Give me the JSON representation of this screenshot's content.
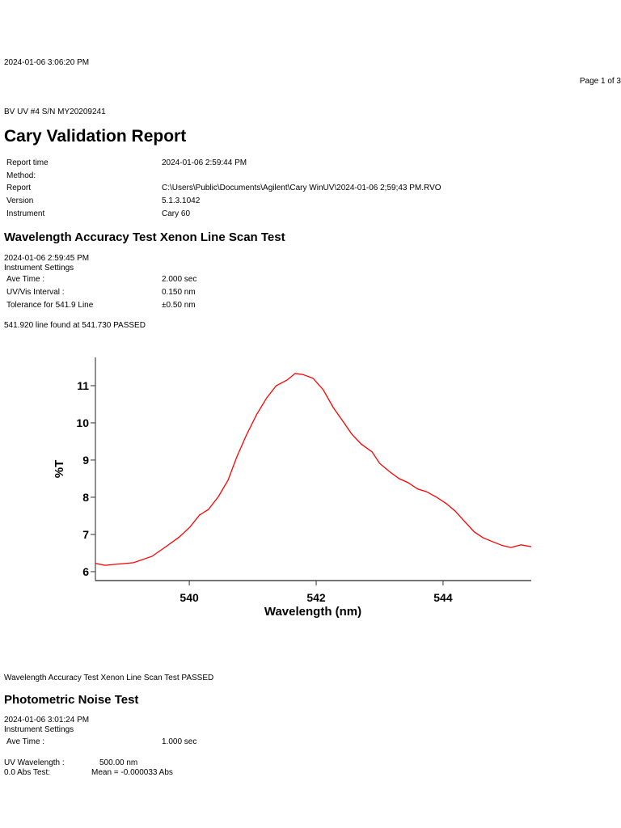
{
  "header": {
    "print_timestamp": "2024-01-06 3:06:20 PM",
    "page_indicator": "Page 1 of 3",
    "instrument_id": "BV UV #4 S/N MY20209241"
  },
  "report": {
    "title": "Cary Validation Report",
    "info": [
      {
        "label": "Report time",
        "value": "2024-01-06 2:59:44 PM"
      },
      {
        "label": "Method:",
        "value": ""
      },
      {
        "label": "Report",
        "value": "C:\\Users\\Public\\Documents\\Agilent\\Cary WinUV\\2024-01-06 2;59;43 PM.RVO"
      },
      {
        "label": "Version",
        "value": "5.1.3.1042"
      },
      {
        "label": "Instrument",
        "value": "Cary 60"
      }
    ]
  },
  "wavelength_test": {
    "title": "Wavelength Accuracy Test Xenon Line Scan Test",
    "timestamp": "2024-01-06 2:59:45 PM",
    "settings_label": "Instrument Settings",
    "settings": [
      {
        "label": "Ave Time :",
        "value": "2.000 sec"
      },
      {
        "label": "UV/Vis Interval :",
        "value": "0.150 nm"
      },
      {
        "label": "Tolerance for 541.9 Line",
        "value": "±0.50 nm"
      }
    ],
    "result_line": "541.920 line found at 541.730 PASSED",
    "summary": "Wavelength Accuracy Test Xenon Line Scan Test PASSED"
  },
  "chart_data": {
    "type": "line",
    "title": "",
    "xlabel": "Wavelength (nm)",
    "ylabel": "%T",
    "xlim": [
      538.52,
      545.39
    ],
    "ylim": [
      5.76,
      11.76
    ],
    "xticks": [
      540,
      542,
      544
    ],
    "yticks": [
      6,
      7,
      8,
      9,
      10,
      11
    ],
    "grid": false,
    "legend": null,
    "line_color": "#ff0000",
    "series": [
      {
        "name": "Xenon line scan",
        "x": [
          538.52,
          538.67,
          539.12,
          539.41,
          539.63,
          539.84,
          540.01,
          540.16,
          540.3,
          540.46,
          540.61,
          540.75,
          540.9,
          541.06,
          541.22,
          541.37,
          541.54,
          541.67,
          541.79,
          541.95,
          542.11,
          542.27,
          542.41,
          542.56,
          542.71,
          542.88,
          543.0,
          543.17,
          543.31,
          543.45,
          543.6,
          543.74,
          543.9,
          544.05,
          544.19,
          544.34,
          544.49,
          544.63,
          544.79,
          544.94,
          545.07,
          545.23,
          545.39
        ],
        "y": [
          6.22,
          6.17,
          6.24,
          6.41,
          6.67,
          6.93,
          7.2,
          7.52,
          7.67,
          8.02,
          8.46,
          9.09,
          9.67,
          10.22,
          10.67,
          11.0,
          11.15,
          11.33,
          11.3,
          11.2,
          10.89,
          10.41,
          10.07,
          9.7,
          9.43,
          9.22,
          8.91,
          8.67,
          8.5,
          8.39,
          8.22,
          8.15,
          8.0,
          7.83,
          7.63,
          7.35,
          7.07,
          6.91,
          6.8,
          6.7,
          6.65,
          6.72,
          6.67
        ]
      }
    ]
  },
  "noise_test": {
    "title": "Photometric Noise Test",
    "timestamp": "2024-01-06 3:01:24 PM",
    "settings_label": "Instrument Settings",
    "settings": [
      {
        "label": "Ave Time :",
        "value": "1.000 sec"
      }
    ],
    "uv_wavelength_label": "UV Wavelength :",
    "uv_wavelength_value": "500.00 nm",
    "abs_test_label": "0.0 Abs Test:",
    "abs_test_value": "Mean = -0.000033 Abs"
  }
}
